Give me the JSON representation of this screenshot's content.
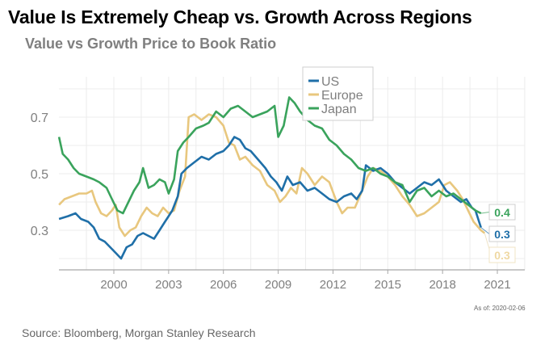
{
  "header": {
    "title": "Value Is Extremely Cheap vs. Growth Across Regions",
    "subtitle": "Value vs Growth Price to Book Ratio"
  },
  "footer": {
    "as_of": "As of:  2020-02-06",
    "source": "Source: Bloomberg, Morgan Stanley Research"
  },
  "chart_data": {
    "type": "line",
    "title": "Value vs Growth Price to Book Ratio",
    "xlabel": "",
    "ylabel": "",
    "xlim": [
      1997,
      2022.6
    ],
    "ylim": [
      0.2,
      0.8
    ],
    "x_ticks": [
      "2000",
      "2003",
      "2006",
      "2009",
      "2012",
      "2015",
      "2018",
      "2021"
    ],
    "x_tick_values": [
      2000,
      2003,
      2006,
      2009,
      2012,
      2015,
      2018,
      2021
    ],
    "y_ticks": [
      "0.3",
      "0.5",
      "0.7"
    ],
    "y_tick_values": [
      0.3,
      0.5,
      0.7
    ],
    "grid": true,
    "legend": {
      "position": "top-center",
      "entries": [
        "US",
        "Europe",
        "Japan"
      ]
    },
    "end_labels": [
      {
        "series": "Japan",
        "text": "0.4"
      },
      {
        "series": "US",
        "text": "0.3"
      },
      {
        "series": "Europe",
        "text": "0.3"
      }
    ],
    "series": [
      {
        "name": "US",
        "color": "#1f6fa8",
        "points": [
          [
            1997.0,
            0.34
          ],
          [
            1997.5,
            0.35
          ],
          [
            1997.9,
            0.36
          ],
          [
            1998.2,
            0.34
          ],
          [
            1998.6,
            0.33
          ],
          [
            1998.9,
            0.31
          ],
          [
            1999.2,
            0.27
          ],
          [
            1999.5,
            0.26
          ],
          [
            1999.8,
            0.24
          ],
          [
            2000.1,
            0.22
          ],
          [
            2000.4,
            0.2
          ],
          [
            2000.7,
            0.24
          ],
          [
            2001.0,
            0.25
          ],
          [
            2001.3,
            0.28
          ],
          [
            2001.6,
            0.29
          ],
          [
            2001.9,
            0.28
          ],
          [
            2002.2,
            0.27
          ],
          [
            2002.5,
            0.3
          ],
          [
            2002.8,
            0.33
          ],
          [
            2003.0,
            0.35
          ],
          [
            2003.2,
            0.37
          ],
          [
            2003.5,
            0.42
          ],
          [
            2003.7,
            0.5
          ],
          [
            2004.0,
            0.52
          ],
          [
            2004.4,
            0.54
          ],
          [
            2004.8,
            0.56
          ],
          [
            2005.2,
            0.55
          ],
          [
            2005.6,
            0.57
          ],
          [
            2006.0,
            0.58
          ],
          [
            2006.3,
            0.6
          ],
          [
            2006.6,
            0.63
          ],
          [
            2006.9,
            0.62
          ],
          [
            2007.2,
            0.59
          ],
          [
            2007.5,
            0.58
          ],
          [
            2007.9,
            0.55
          ],
          [
            2008.3,
            0.52
          ],
          [
            2008.6,
            0.49
          ],
          [
            2008.9,
            0.47
          ],
          [
            2009.2,
            0.44
          ],
          [
            2009.5,
            0.49
          ],
          [
            2009.8,
            0.46
          ],
          [
            2010.2,
            0.47
          ],
          [
            2010.6,
            0.44
          ],
          [
            2011.0,
            0.45
          ],
          [
            2011.4,
            0.43
          ],
          [
            2011.8,
            0.41
          ],
          [
            2012.2,
            0.4
          ],
          [
            2012.6,
            0.42
          ],
          [
            2013.0,
            0.43
          ],
          [
            2013.3,
            0.41
          ],
          [
            2013.6,
            0.44
          ],
          [
            2013.8,
            0.53
          ],
          [
            2014.2,
            0.51
          ],
          [
            2014.6,
            0.52
          ],
          [
            2015.0,
            0.5
          ],
          [
            2015.4,
            0.47
          ],
          [
            2015.8,
            0.45
          ],
          [
            2016.2,
            0.43
          ],
          [
            2016.6,
            0.45
          ],
          [
            2017.0,
            0.47
          ],
          [
            2017.4,
            0.46
          ],
          [
            2017.8,
            0.48
          ],
          [
            2018.2,
            0.44
          ],
          [
            2018.6,
            0.42
          ],
          [
            2019.0,
            0.4
          ],
          [
            2019.3,
            0.41
          ],
          [
            2019.6,
            0.38
          ],
          [
            2019.8,
            0.37
          ],
          [
            2020.0,
            0.33
          ],
          [
            2020.1,
            0.31
          ]
        ]
      },
      {
        "name": "Europe",
        "color": "#e8c77e",
        "points": [
          [
            1997.0,
            0.39
          ],
          [
            1997.3,
            0.41
          ],
          [
            1997.7,
            0.42
          ],
          [
            1998.1,
            0.43
          ],
          [
            1998.5,
            0.43
          ],
          [
            1998.8,
            0.44
          ],
          [
            1999.0,
            0.4
          ],
          [
            1999.3,
            0.36
          ],
          [
            1999.6,
            0.35
          ],
          [
            1999.9,
            0.37
          ],
          [
            2000.1,
            0.39
          ],
          [
            2000.3,
            0.31
          ],
          [
            2000.6,
            0.28
          ],
          [
            2000.9,
            0.3
          ],
          [
            2001.2,
            0.31
          ],
          [
            2001.5,
            0.35
          ],
          [
            2001.8,
            0.38
          ],
          [
            2002.1,
            0.36
          ],
          [
            2002.4,
            0.35
          ],
          [
            2002.7,
            0.38
          ],
          [
            2003.0,
            0.36
          ],
          [
            2003.3,
            0.37
          ],
          [
            2003.6,
            0.44
          ],
          [
            2003.9,
            0.49
          ],
          [
            2004.1,
            0.7
          ],
          [
            2004.4,
            0.71
          ],
          [
            2004.8,
            0.69
          ],
          [
            2005.2,
            0.71
          ],
          [
            2005.6,
            0.7
          ],
          [
            2006.0,
            0.67
          ],
          [
            2006.3,
            0.61
          ],
          [
            2006.6,
            0.6
          ],
          [
            2006.9,
            0.55
          ],
          [
            2007.2,
            0.56
          ],
          [
            2007.6,
            0.53
          ],
          [
            2008.0,
            0.51
          ],
          [
            2008.4,
            0.46
          ],
          [
            2008.8,
            0.44
          ],
          [
            2009.1,
            0.4
          ],
          [
            2009.4,
            0.42
          ],
          [
            2009.7,
            0.45
          ],
          [
            2010.0,
            0.43
          ],
          [
            2010.3,
            0.52
          ],
          [
            2010.6,
            0.5
          ],
          [
            2011.0,
            0.46
          ],
          [
            2011.4,
            0.49
          ],
          [
            2011.8,
            0.47
          ],
          [
            2012.2,
            0.4
          ],
          [
            2012.5,
            0.36
          ],
          [
            2012.8,
            0.38
          ],
          [
            2013.2,
            0.38
          ],
          [
            2013.6,
            0.44
          ],
          [
            2013.9,
            0.49
          ],
          [
            2014.2,
            0.52
          ],
          [
            2014.6,
            0.51
          ],
          [
            2015.0,
            0.49
          ],
          [
            2015.4,
            0.46
          ],
          [
            2015.8,
            0.42
          ],
          [
            2016.2,
            0.39
          ],
          [
            2016.6,
            0.35
          ],
          [
            2017.0,
            0.36
          ],
          [
            2017.4,
            0.38
          ],
          [
            2017.8,
            0.4
          ],
          [
            2018.1,
            0.46
          ],
          [
            2018.4,
            0.47
          ],
          [
            2018.8,
            0.44
          ],
          [
            2019.1,
            0.41
          ],
          [
            2019.4,
            0.37
          ],
          [
            2019.7,
            0.33
          ],
          [
            2020.1,
            0.3
          ],
          [
            2020.3,
            0.29
          ]
        ]
      },
      {
        "name": "Japan",
        "color": "#3aa35c",
        "points": [
          [
            1997.0,
            0.63
          ],
          [
            1997.2,
            0.57
          ],
          [
            1997.5,
            0.55
          ],
          [
            1997.8,
            0.52
          ],
          [
            1998.1,
            0.5
          ],
          [
            1998.5,
            0.49
          ],
          [
            1998.9,
            0.48
          ],
          [
            1999.2,
            0.47
          ],
          [
            1999.6,
            0.45
          ],
          [
            1999.9,
            0.41
          ],
          [
            2000.2,
            0.37
          ],
          [
            2000.5,
            0.36
          ],
          [
            2000.8,
            0.4
          ],
          [
            2001.1,
            0.44
          ],
          [
            2001.4,
            0.47
          ],
          [
            2001.6,
            0.52
          ],
          [
            2001.9,
            0.45
          ],
          [
            2002.2,
            0.46
          ],
          [
            2002.5,
            0.48
          ],
          [
            2002.8,
            0.47
          ],
          [
            2003.0,
            0.43
          ],
          [
            2003.3,
            0.48
          ],
          [
            2003.5,
            0.58
          ],
          [
            2003.8,
            0.61
          ],
          [
            2004.1,
            0.63
          ],
          [
            2004.5,
            0.66
          ],
          [
            2004.9,
            0.67
          ],
          [
            2005.2,
            0.68
          ],
          [
            2005.6,
            0.72
          ],
          [
            2006.0,
            0.7
          ],
          [
            2006.4,
            0.73
          ],
          [
            2006.8,
            0.74
          ],
          [
            2007.2,
            0.72
          ],
          [
            2007.6,
            0.7
          ],
          [
            2008.0,
            0.71
          ],
          [
            2008.4,
            0.72
          ],
          [
            2008.8,
            0.74
          ],
          [
            2009.0,
            0.63
          ],
          [
            2009.3,
            0.67
          ],
          [
            2009.6,
            0.77
          ],
          [
            2009.9,
            0.75
          ],
          [
            2010.2,
            0.72
          ],
          [
            2010.6,
            0.69
          ],
          [
            2011.0,
            0.67
          ],
          [
            2011.4,
            0.66
          ],
          [
            2011.8,
            0.62
          ],
          [
            2012.2,
            0.6
          ],
          [
            2012.6,
            0.57
          ],
          [
            2013.0,
            0.55
          ],
          [
            2013.4,
            0.52
          ],
          [
            2013.8,
            0.51
          ],
          [
            2014.2,
            0.52
          ],
          [
            2014.6,
            0.5
          ],
          [
            2015.0,
            0.49
          ],
          [
            2015.4,
            0.47
          ],
          [
            2015.8,
            0.46
          ],
          [
            2016.2,
            0.4
          ],
          [
            2016.6,
            0.44
          ],
          [
            2017.0,
            0.45
          ],
          [
            2017.4,
            0.42
          ],
          [
            2017.8,
            0.44
          ],
          [
            2018.2,
            0.42
          ],
          [
            2018.6,
            0.43
          ],
          [
            2019.0,
            0.41
          ],
          [
            2019.4,
            0.39
          ],
          [
            2019.8,
            0.37
          ],
          [
            2020.1,
            0.36
          ]
        ]
      }
    ]
  }
}
